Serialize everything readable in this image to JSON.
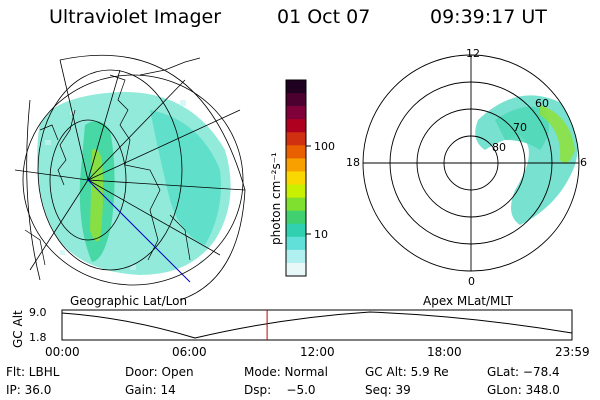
{
  "header": {
    "instrument": "Ultraviolet Imager",
    "date": "01 Oct 07",
    "time": "09:39:17 UT"
  },
  "colorbar": {
    "unit_label": "photon cm⁻²s⁻¹",
    "tick_labels": [
      "100",
      "10"
    ],
    "scale": "log",
    "colors_top_to_bottom": [
      "#200020",
      "#4b0030",
      "#80003a",
      "#b00020",
      "#d03010",
      "#e86000",
      "#f8a000",
      "#f8d800",
      "#c8f000",
      "#80e030",
      "#40d070",
      "#30d0b0",
      "#60e0d8",
      "#b0f0f0",
      "#e8f8f8"
    ]
  },
  "left_panel": {
    "caption": "Geographic Lat/Lon"
  },
  "right_panel": {
    "caption": "Apex MLat/MLT",
    "mlt_labels": [
      "12",
      "18",
      "6",
      "0"
    ],
    "mlat_labels": [
      "60",
      "70",
      "80"
    ]
  },
  "altitude_plot": {
    "ylabel": "GC Alt",
    "y_ticks": [
      "9.0",
      "1.8"
    ],
    "x_ticks": [
      "00:00",
      "06:00",
      "12:00",
      "18:00",
      "23:59"
    ],
    "current_time_marker_hours": 9.65
  },
  "footer": {
    "filter": "Flt: LBHL",
    "door": "Door: Open",
    "mode": "Mode: Normal",
    "gc_alt": "GC Alt: 5.9 Re",
    "glat": "GLat: −78.4",
    "ip": "IP: 36.0",
    "gain": "Gain: 14",
    "dsp": "Dsp:    −5.0",
    "seq": "Seq: 39",
    "glon": "GLon: 348.0"
  },
  "accent_colors": {
    "marker_line": "#c00000",
    "track_line": "#0000c0",
    "aurora_main": "#40d8b0",
    "aurora_bright": "#80e030"
  }
}
